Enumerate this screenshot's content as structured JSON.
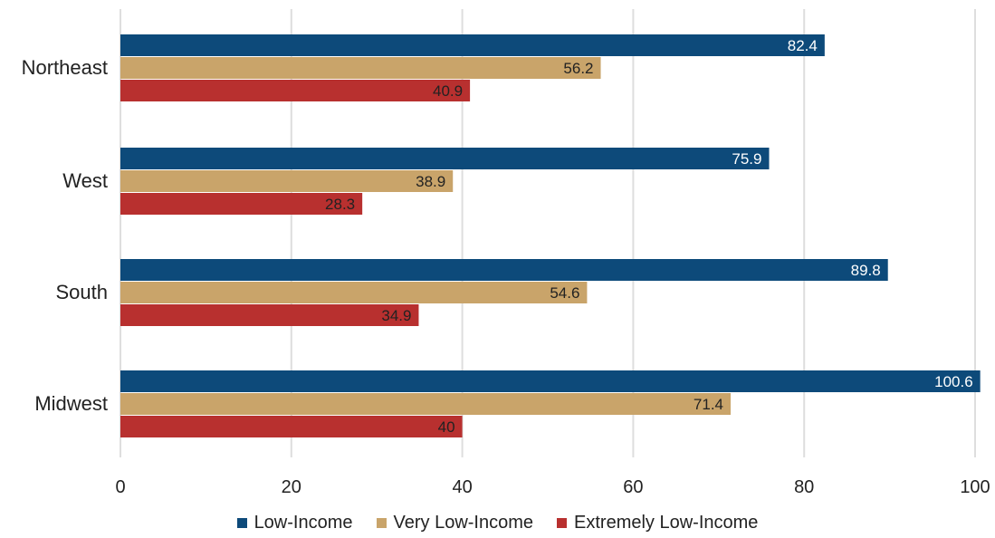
{
  "chart_data": {
    "type": "bar",
    "orientation": "horizontal",
    "title": "",
    "xlabel": "",
    "ylabel": "",
    "xlim": [
      0,
      100
    ],
    "x_ticks": [
      0,
      20,
      40,
      60,
      80,
      100
    ],
    "grid": "vertical",
    "legend_position": "bottom",
    "categories": [
      "Northeast",
      "West",
      "South",
      "Midwest"
    ],
    "series": [
      {
        "name": "Low-Income",
        "color": "#0d4a7a",
        "label_color": "#ffffff",
        "values": [
          82.4,
          75.9,
          89.8,
          100.6
        ]
      },
      {
        "name": "Very Low-Income",
        "color": "#c9a46a",
        "label_color": "#222222",
        "values": [
          56.2,
          38.9,
          54.6,
          71.4
        ]
      },
      {
        "name": "Extremely Low-Income",
        "color": "#b8302f",
        "label_color": "#222222",
        "values": [
          40.9,
          28.3,
          34.9,
          40
        ]
      }
    ],
    "data_labels": [
      [
        "82.4",
        "75.9",
        "89.8",
        "100.6"
      ],
      [
        "56.2",
        "38.9",
        "54.6",
        "71.4"
      ],
      [
        "40.9",
        "28.3",
        "34.9",
        "40"
      ]
    ]
  }
}
